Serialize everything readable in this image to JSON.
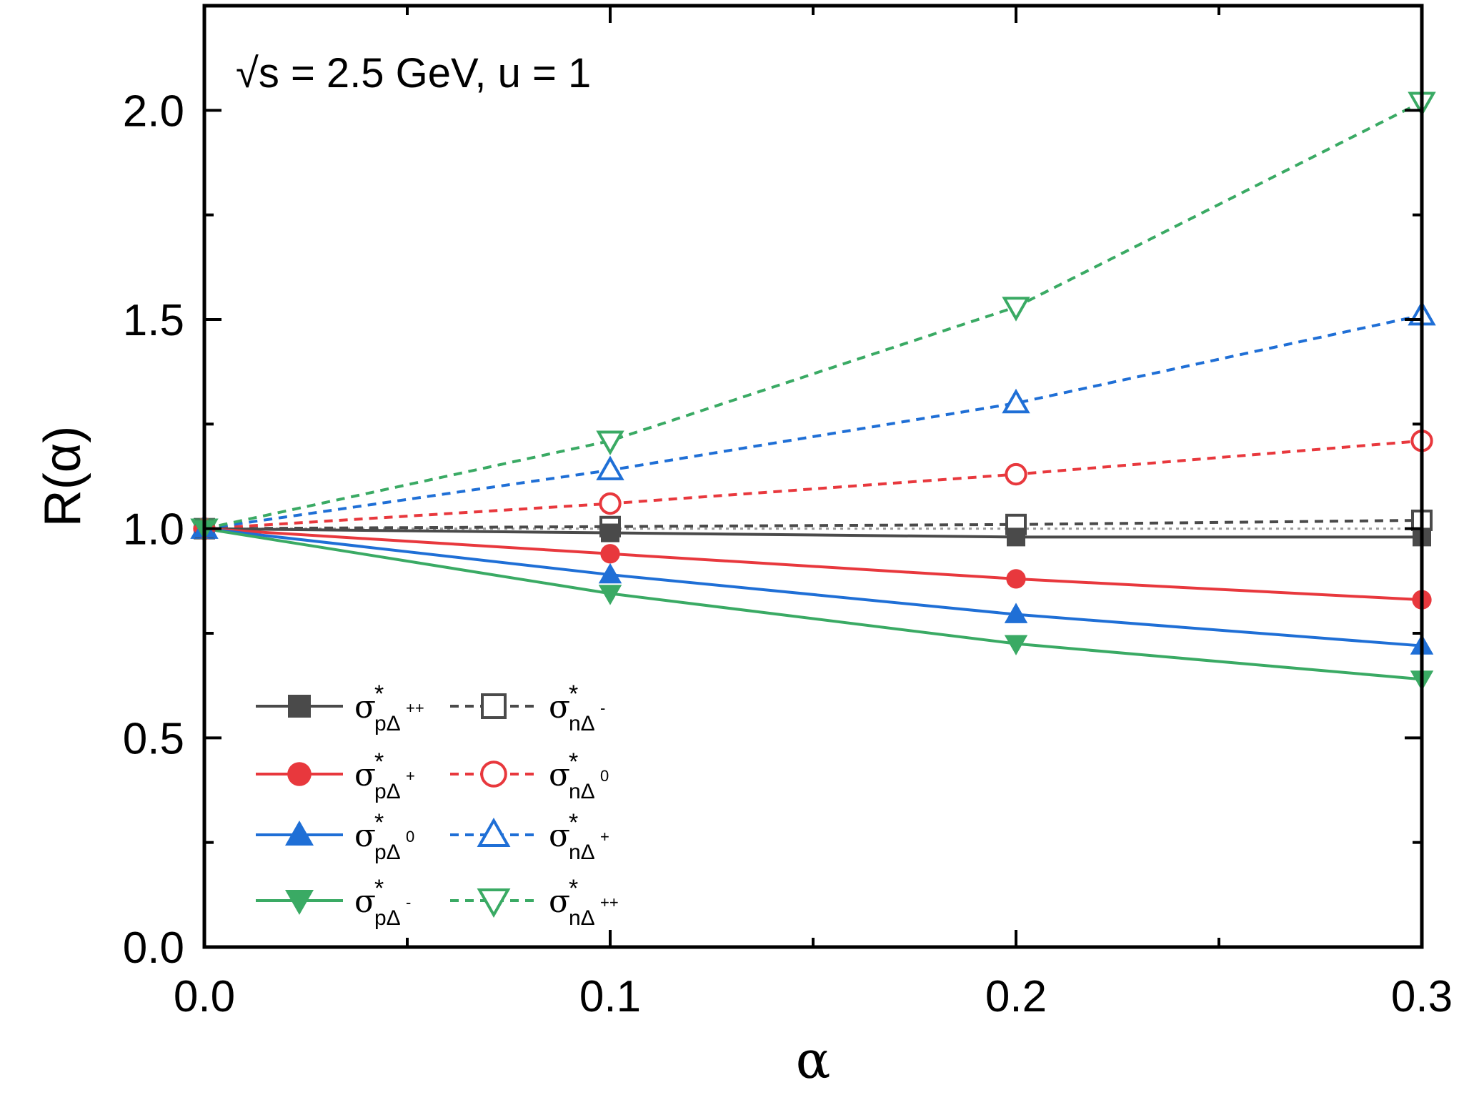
{
  "chart_data": {
    "type": "line",
    "annotation": "√s = 2.5 GeV,  u = 1",
    "xlabel": "α",
    "ylabel": "R(α)",
    "xlim": [
      0.0,
      0.3
    ],
    "ylim": [
      0.0,
      2.25
    ],
    "xticks": [
      0.0,
      0.1,
      0.2,
      0.3
    ],
    "xtick_labels": [
      "0.0",
      "0.1",
      "0.2",
      "0.3"
    ],
    "xminor": [
      0.05,
      0.15,
      0.25
    ],
    "yticks": [
      0.0,
      0.5,
      1.0,
      1.5,
      2.0
    ],
    "ytick_labels": [
      "0.0",
      "0.5",
      "1.0",
      "1.5",
      "2.0"
    ],
    "yminor": [
      0.25,
      0.75,
      1.25,
      1.75
    ],
    "reference_line": {
      "y": 1.0,
      "style": "dotted",
      "color": "#9a9a9a"
    },
    "legend_position": "lower-left",
    "x": [
      0.0,
      0.1,
      0.2,
      0.3
    ],
    "series": [
      {
        "label": {
          "base": "σ",
          "star": "*",
          "sub": "pΔ",
          "sup": "++"
        },
        "values": [
          1.0,
          0.99,
          0.98,
          0.98
        ],
        "color": "#4a4a4a",
        "marker": "square",
        "filled": true,
        "dash": false
      },
      {
        "label": {
          "base": "σ",
          "star": "*",
          "sub": "pΔ",
          "sup": "+"
        },
        "values": [
          1.0,
          0.94,
          0.88,
          0.83
        ],
        "color": "#e8383d",
        "marker": "circle",
        "filled": true,
        "dash": false
      },
      {
        "label": {
          "base": "σ",
          "star": "*",
          "sub": "pΔ",
          "sup": "0"
        },
        "values": [
          1.0,
          0.89,
          0.795,
          0.72
        ],
        "color": "#1f6fd6",
        "marker": "triangle-up",
        "filled": true,
        "dash": false
      },
      {
        "label": {
          "base": "σ",
          "star": "*",
          "sub": "pΔ",
          "sup": "-"
        },
        "values": [
          1.0,
          0.845,
          0.725,
          0.64
        ],
        "color": "#3aaa64",
        "marker": "triangle-down",
        "filled": true,
        "dash": false
      },
      {
        "label": {
          "base": "σ",
          "star": "*",
          "sub": "nΔ",
          "sup": "-"
        },
        "values": [
          1.0,
          1.005,
          1.01,
          1.02
        ],
        "color": "#4a4a4a",
        "marker": "square",
        "filled": false,
        "dash": true
      },
      {
        "label": {
          "base": "σ",
          "star": "*",
          "sub": "nΔ",
          "sup": "0"
        },
        "values": [
          1.0,
          1.06,
          1.13,
          1.21
        ],
        "color": "#e8383d",
        "marker": "circle",
        "filled": false,
        "dash": true
      },
      {
        "label": {
          "base": "σ",
          "star": "*",
          "sub": "nΔ",
          "sup": "+"
        },
        "values": [
          1.0,
          1.14,
          1.3,
          1.51
        ],
        "color": "#1f6fd6",
        "marker": "triangle-up",
        "filled": false,
        "dash": true
      },
      {
        "label": {
          "base": "σ",
          "star": "*",
          "sub": "nΔ",
          "sup": "++"
        },
        "values": [
          1.0,
          1.21,
          1.53,
          2.02
        ],
        "color": "#3aaa64",
        "marker": "triangle-down",
        "filled": false,
        "dash": true
      }
    ]
  }
}
